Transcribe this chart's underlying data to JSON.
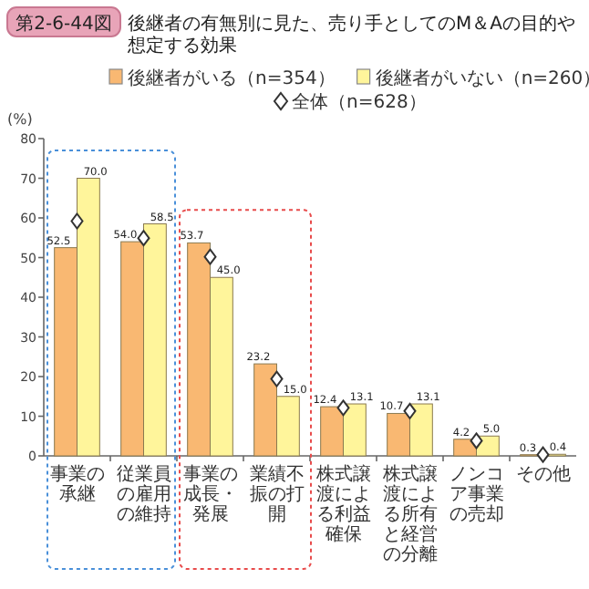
{
  "chart_data": {
    "type": "bar",
    "title": "後継者の有無別に見た、売り手としてのM＆Aの目的や想定する効果",
    "annotations": [
      "第2-6-44図"
    ],
    "ylabel": "(%)",
    "categories": [
      "事業の承継",
      "従業員の雇用の維持",
      "事業の成長・発展",
      "業績不振の打開",
      "株式譲渡による利益確保",
      "株式譲渡による所有と経営の分離",
      "ノンコア事業の売却",
      "その他"
    ],
    "series": [
      {
        "name": "後継者がいる（n=354）",
        "color": "#f9b872",
        "values": [
          52.5,
          54.0,
          53.7,
          23.2,
          12.4,
          10.7,
          4.2,
          0.3
        ],
        "value_labels": [
          "52.5",
          "54.0",
          "53.7",
          "23.2",
          "12.4",
          "10.7",
          "4.2",
          "0.3"
        ]
      },
      {
        "name": "後継者がいない（n=260）",
        "color": "#fff59b",
        "values": [
          70.0,
          58.5,
          45.0,
          15.0,
          13.1,
          13.1,
          5.0,
          0.4
        ],
        "value_labels": [
          "70.0",
          "58.5",
          "45.0",
          "15.0",
          "13.1",
          "13.1",
          "5.0",
          "0.4"
        ]
      },
      {
        "name": "全体（n=628）",
        "type": "scatter",
        "marker": "diamond",
        "color": "#ffffff",
        "values": [
          59.2,
          54.9,
          50.2,
          19.4,
          12.1,
          11.3,
          3.8,
          0.3
        ]
      }
    ],
    "ylim": [
      0,
      80
    ],
    "yticks": [
      0,
      10,
      20,
      30,
      40,
      50,
      60,
      70,
      80
    ],
    "legend": "top",
    "grid": false
  }
}
